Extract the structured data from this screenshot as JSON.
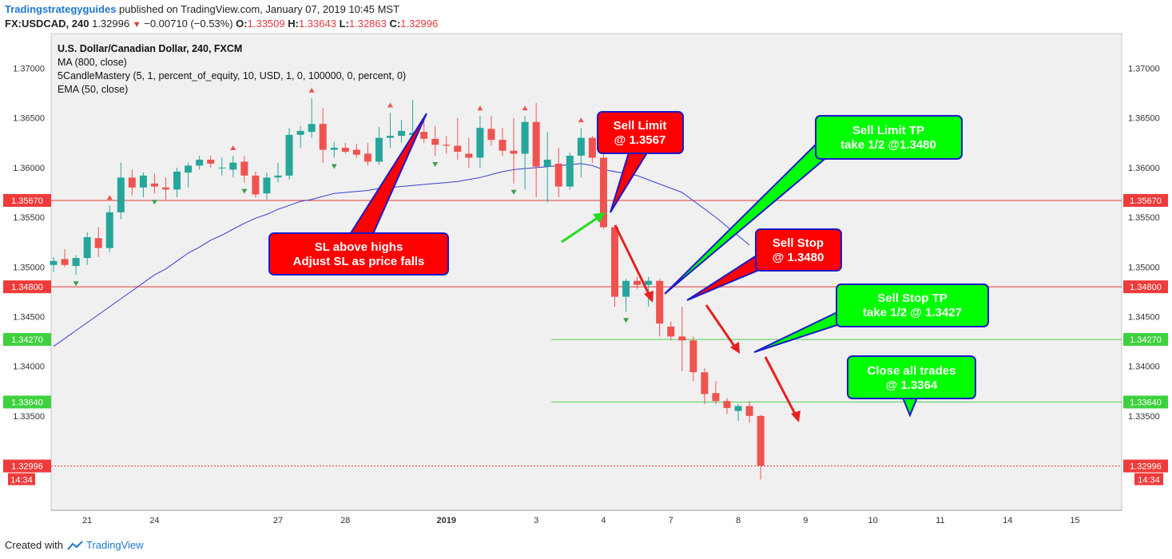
{
  "header": {
    "brand": "Tradingstrategyguides",
    "published": "published on TradingView.com, January 07, 2019 10:45 MST",
    "symbol": "FX:USDCAD, 240",
    "last": "1.32996",
    "change": "−0.00710 (−0.53%)",
    "o_label": "O:",
    "o": "1.33509",
    "h_label": "H:",
    "h": "1.33643",
    "l_label": "L:",
    "l": "1.32863",
    "c_label": "C:",
    "c": "1.32996"
  },
  "legend": {
    "title": "U.S. Dollar/Canadian Dollar, 240, FXCM",
    "lines": [
      "MA (800, close)",
      "5CandleMastery (5, 1, percent_of_equity, 10, USD, 1, 0, 100000, 0, percent, 0)",
      "EMA (50, close)"
    ]
  },
  "footer": {
    "created": "Created with",
    "brand": "TradingView"
  },
  "colors": {
    "bull": "#26a69a",
    "bear": "#ef5350",
    "ema": "#3a3fd1",
    "red_line": "#e53935",
    "green_line": "#4cd14c",
    "box_red": "#ff0000",
    "box_green": "#00ff00",
    "box_border": "#1a1acc",
    "tag_red": "#ef3b3b",
    "tag_green": "#3ed13e"
  },
  "chart_data": {
    "type": "candlestick",
    "y_ticks": [
      "1.37000",
      "1.36500",
      "1.36000",
      "1.35500",
      "1.35000",
      "1.34500",
      "1.34000",
      "1.33500"
    ],
    "y_range": [
      1.3255,
      1.3735
    ],
    "x_ticks": [
      {
        "label": "21",
        "bar": 3
      },
      {
        "label": "24",
        "bar": 9
      },
      {
        "label": "27",
        "bar": 20
      },
      {
        "label": "28",
        "bar": 26
      },
      {
        "label": "2019",
        "bar": 35
      },
      {
        "label": "3",
        "bar": 43
      },
      {
        "label": "4",
        "bar": 49
      },
      {
        "label": "7",
        "bar": 55
      },
      {
        "label": "8",
        "bar": 61
      },
      {
        "label": "9",
        "bar": 67
      },
      {
        "label": "10",
        "bar": 73
      },
      {
        "label": "11",
        "bar": 79
      },
      {
        "label": "14",
        "bar": 85
      },
      {
        "label": "15",
        "bar": 91
      }
    ],
    "candles": [
      [
        1.3502,
        1.351,
        1.3495,
        1.3506
      ],
      [
        1.3508,
        1.3518,
        1.35,
        1.3502
      ],
      [
        1.3501,
        1.3512,
        1.3492,
        1.3509
      ],
      [
        1.3509,
        1.3535,
        1.3502,
        1.353
      ],
      [
        1.3529,
        1.354,
        1.351,
        1.3519
      ],
      [
        1.3519,
        1.3562,
        1.3515,
        1.3555
      ],
      [
        1.3555,
        1.3605,
        1.3548,
        1.359
      ],
      [
        1.359,
        1.3598,
        1.3572,
        1.358
      ],
      [
        1.358,
        1.3595,
        1.357,
        1.3592
      ],
      [
        1.3584,
        1.3594,
        1.3574,
        1.3581
      ],
      [
        1.358,
        1.359,
        1.3568,
        1.3578
      ],
      [
        1.3578,
        1.36,
        1.357,
        1.3596
      ],
      [
        1.3595,
        1.3605,
        1.358,
        1.3602
      ],
      [
        1.3602,
        1.3612,
        1.3598,
        1.3608
      ],
      [
        1.3608,
        1.3612,
        1.36,
        1.3604
      ],
      [
        1.36,
        1.361,
        1.3592,
        1.36
      ],
      [
        1.3598,
        1.3612,
        1.359,
        1.3605
      ],
      [
        1.3606,
        1.3612,
        1.3585,
        1.3592
      ],
      [
        1.3592,
        1.3596,
        1.357,
        1.3573
      ],
      [
        1.3574,
        1.3595,
        1.3568,
        1.359
      ],
      [
        1.359,
        1.3605,
        1.3585,
        1.3592
      ],
      [
        1.3592,
        1.364,
        1.3588,
        1.3633
      ],
      [
        1.3633,
        1.3642,
        1.362,
        1.3637
      ],
      [
        1.3636,
        1.367,
        1.363,
        1.3644
      ],
      [
        1.3644,
        1.366,
        1.3605,
        1.3618
      ],
      [
        1.3618,
        1.3626,
        1.361,
        1.362
      ],
      [
        1.362,
        1.3625,
        1.3614,
        1.3616
      ],
      [
        1.3618,
        1.3624,
        1.361,
        1.3613
      ],
      [
        1.3614,
        1.3625,
        1.3602,
        1.3606
      ],
      [
        1.3606,
        1.3641,
        1.3603,
        1.363
      ],
      [
        1.363,
        1.3655,
        1.362,
        1.3632
      ],
      [
        1.3632,
        1.3648,
        1.3625,
        1.3637
      ],
      [
        1.3633,
        1.3668,
        1.3628,
        1.3635
      ],
      [
        1.3636,
        1.365,
        1.3625,
        1.3629
      ],
      [
        1.3629,
        1.3642,
        1.3612,
        1.3623
      ],
      [
        1.3623,
        1.3632,
        1.3614,
        1.3622
      ],
      [
        1.3622,
        1.365,
        1.3608,
        1.3616
      ],
      [
        1.3614,
        1.363,
        1.36,
        1.361
      ],
      [
        1.361,
        1.3652,
        1.36,
        1.364
      ],
      [
        1.3639,
        1.3652,
        1.3622,
        1.3628
      ],
      [
        1.3628,
        1.364,
        1.3612,
        1.3617
      ],
      [
        1.3617,
        1.365,
        1.3584,
        1.3614
      ],
      [
        1.3614,
        1.3652,
        1.3578,
        1.3646
      ],
      [
        1.3646,
        1.3665,
        1.357,
        1.3601
      ],
      [
        1.3601,
        1.3636,
        1.3565,
        1.3608
      ],
      [
        1.3604,
        1.362,
        1.357,
        1.3581
      ],
      [
        1.3581,
        1.3615,
        1.3578,
        1.3612
      ],
      [
        1.3612,
        1.364,
        1.359,
        1.363
      ],
      [
        1.363,
        1.3632,
        1.3605,
        1.361
      ],
      [
        1.361,
        1.362,
        1.3538,
        1.354
      ],
      [
        1.354,
        1.3542,
        1.346,
        1.347
      ],
      [
        1.347,
        1.3488,
        1.3455,
        1.3486
      ],
      [
        1.3486,
        1.349,
        1.3478,
        1.3482
      ],
      [
        1.3482,
        1.349,
        1.346,
        1.3486
      ],
      [
        1.3486,
        1.3488,
        1.343,
        1.3443
      ],
      [
        1.344,
        1.3445,
        1.3426,
        1.343
      ],
      [
        1.343,
        1.346,
        1.3395,
        1.3426
      ],
      [
        1.3426,
        1.343,
        1.3385,
        1.3394
      ],
      [
        1.3394,
        1.3398,
        1.3362,
        1.3372
      ],
      [
        1.3373,
        1.3385,
        1.3362,
        1.3365
      ],
      [
        1.3365,
        1.3368,
        1.3352,
        1.3358
      ],
      [
        1.3355,
        1.3362,
        1.3345,
        1.336
      ],
      [
        1.336,
        1.3365,
        1.3343,
        1.335
      ],
      [
        1.335,
        1.3351,
        1.3286,
        1.33
      ]
    ],
    "ema": [
      1.342,
      1.3428,
      1.3436,
      1.3444,
      1.3452,
      1.346,
      1.3468,
      1.3476,
      1.3484,
      1.3492,
      1.3498,
      1.3506,
      1.3514,
      1.352,
      1.3527,
      1.3532,
      1.3538,
      1.3544,
      1.3549,
      1.3553,
      1.3558,
      1.3562,
      1.3566,
      1.3568,
      1.3571,
      1.3574,
      1.3575,
      1.3576,
      1.3577,
      1.3579,
      1.358,
      1.3581,
      1.3582,
      1.3583,
      1.3584,
      1.3585,
      1.3586,
      1.3588,
      1.359,
      1.3593,
      1.3596,
      1.3598,
      1.3599,
      1.36,
      1.3601,
      1.3602,
      1.3603,
      1.3604,
      1.3602,
      1.3598
    ],
    "ema_tail": [
      [
        49,
        1.3598
      ],
      [
        52,
        1.3592
      ],
      [
        56,
        1.3575
      ],
      [
        59,
        1.355
      ],
      [
        62,
        1.3522
      ]
    ],
    "markers_up": [
      5,
      16,
      23,
      30,
      38,
      42,
      47
    ],
    "markers_down": [
      2,
      9,
      17,
      25,
      34,
      41,
      51
    ],
    "levels": [
      {
        "value": 1.3567,
        "label": "1.35670",
        "color": "red"
      },
      {
        "value": 1.348,
        "label": "1.34800",
        "color": "red"
      },
      {
        "value": 1.3427,
        "label": "1.34270",
        "color": "green"
      },
      {
        "value": 1.3364,
        "label": "1.33640",
        "color": "green"
      },
      {
        "value": 1.32996,
        "label": "1.32996",
        "color": "red_dotted"
      }
    ],
    "time_tag": "14:34"
  },
  "annotations": {
    "sl_box": {
      "line1": "SL above highs",
      "line2": "Adjust SL as price falls"
    },
    "sell_limit": {
      "line1": "Sell Limit",
      "line2": "@ 1.3567"
    },
    "sell_limit_tp": {
      "line1": "Sell Limit TP",
      "line2": "take 1/2 @1.3480"
    },
    "sell_stop": {
      "line1": "Sell Stop",
      "line2": "@ 1.3480"
    },
    "sell_stop_tp": {
      "line1": "Sell Stop TP",
      "line2": "take 1/2 @ 1.3427"
    },
    "close_all": {
      "line1": "Close all trades",
      "line2": "@ 1.3364"
    }
  }
}
